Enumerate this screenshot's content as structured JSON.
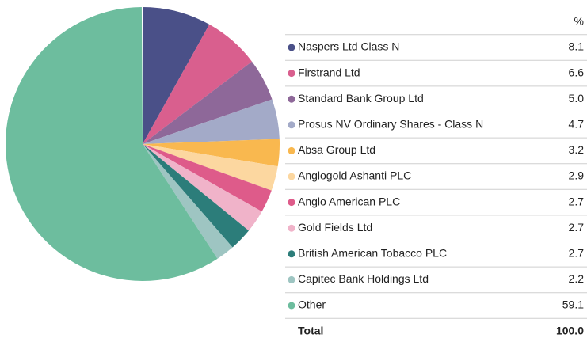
{
  "chart_data": {
    "type": "pie",
    "value_header": "%",
    "categories": [
      "Naspers Ltd Class N",
      "Firstrand Ltd",
      "Standard Bank Group Ltd",
      "Prosus NV Ordinary Shares - Class N",
      "Absa Group Ltd",
      "Anglogold Ashanti PLC",
      "Anglo American PLC",
      "Gold Fields Ltd",
      "British American Tobacco PLC",
      "Capitec Bank Holdings Ltd",
      "Other"
    ],
    "values": [
      8.1,
      6.6,
      5.0,
      4.7,
      3.2,
      2.9,
      2.7,
      2.7,
      2.7,
      2.2,
      59.1
    ],
    "value_labels": [
      "8.1",
      "6.6",
      "5.0",
      "4.7",
      "3.2",
      "2.9",
      "2.7",
      "2.7",
      "2.7",
      "2.2",
      "59.1"
    ],
    "colors": [
      "#4a5088",
      "#d95f8e",
      "#8e6899",
      "#a3aac8",
      "#f9b84f",
      "#fcd7a0",
      "#de5b8a",
      "#f0b3c9",
      "#2c7d7a",
      "#9ec5c2",
      "#6dbd9e"
    ],
    "total_name": "Total",
    "total": {
      "value": 100,
      "label": "100.0"
    }
  }
}
